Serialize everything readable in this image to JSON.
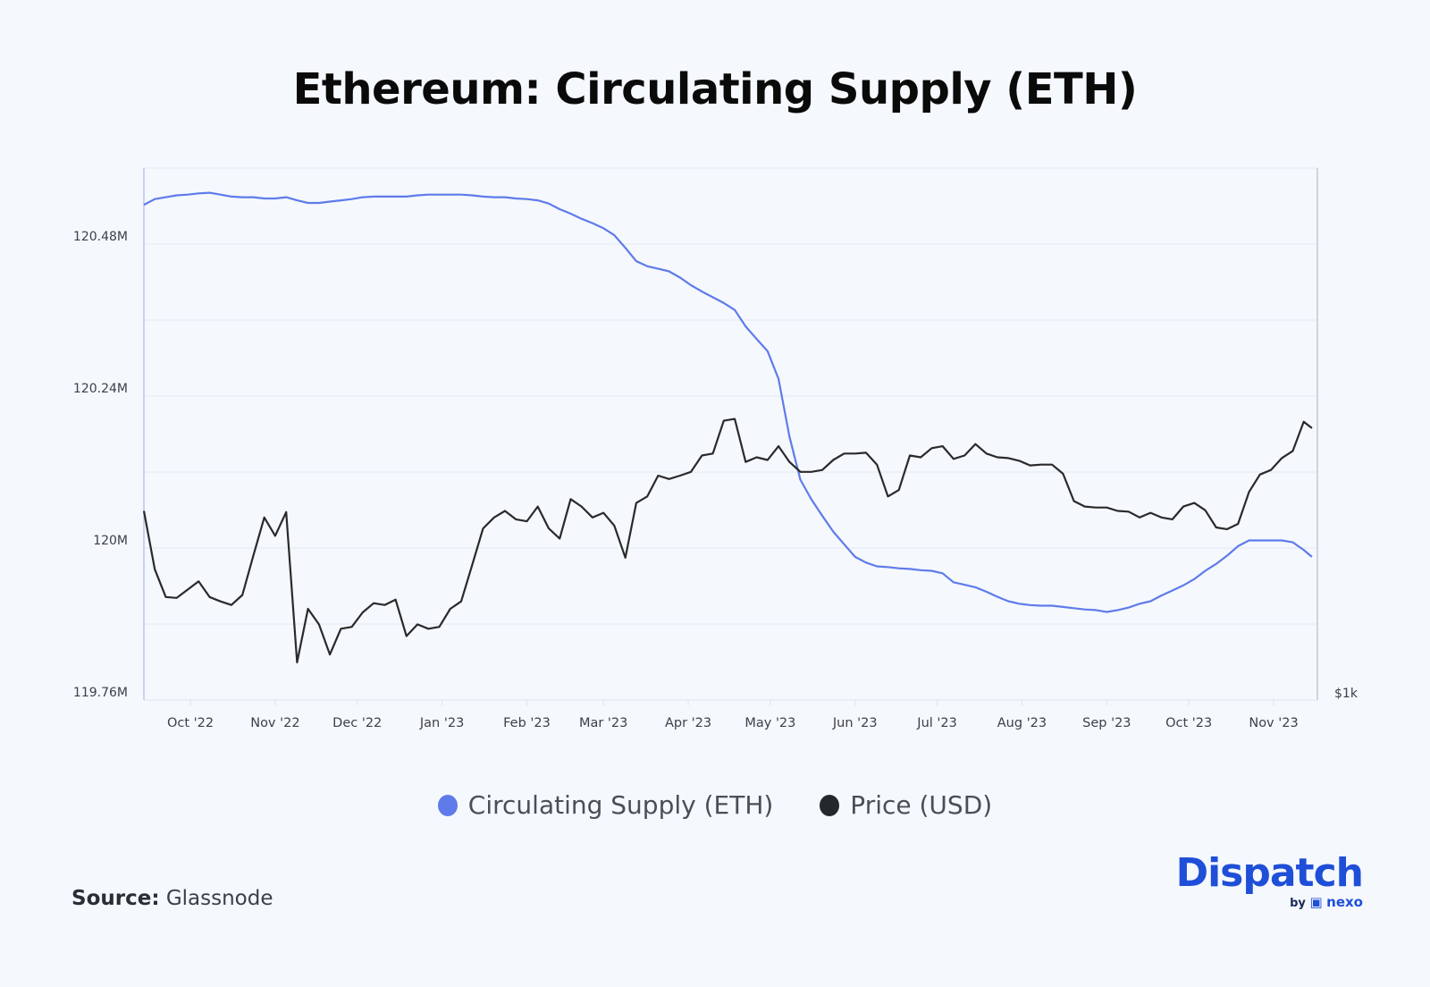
{
  "title": "Ethereum: Circulating Supply (ETH)",
  "source_label": "Source:",
  "source_value": "Glassnode",
  "logo": {
    "text": "Dispatch",
    "sub_by": "by",
    "sub_brand": "nexo"
  },
  "chart_data": {
    "type": "line",
    "title": "Ethereum: Circulating Supply (ETH)",
    "x": [
      "2022-09-14",
      "2022-09-18",
      "2022-09-22",
      "2022-09-26",
      "2022-09-30",
      "2022-10-04",
      "2022-10-08",
      "2022-10-12",
      "2022-10-16",
      "2022-10-20",
      "2022-10-24",
      "2022-10-28",
      "2022-11-01",
      "2022-11-05",
      "2022-11-09",
      "2022-11-13",
      "2022-11-17",
      "2022-11-21",
      "2022-11-25",
      "2022-11-29",
      "2022-12-03",
      "2022-12-07",
      "2022-12-11",
      "2022-12-15",
      "2022-12-19",
      "2022-12-23",
      "2022-12-27",
      "2022-12-31",
      "2023-01-04",
      "2023-01-08",
      "2023-01-12",
      "2023-01-16",
      "2023-01-20",
      "2023-01-24",
      "2023-01-28",
      "2023-02-01",
      "2023-02-05",
      "2023-02-09",
      "2023-02-13",
      "2023-02-17",
      "2023-02-21",
      "2023-02-25",
      "2023-03-01",
      "2023-03-05",
      "2023-03-09",
      "2023-03-13",
      "2023-03-17",
      "2023-03-21",
      "2023-03-25",
      "2023-03-29",
      "2023-04-02",
      "2023-04-06",
      "2023-04-10",
      "2023-04-14",
      "2023-04-18",
      "2023-04-22",
      "2023-04-26",
      "2023-04-30",
      "2023-05-04",
      "2023-05-08",
      "2023-05-12",
      "2023-05-16",
      "2023-05-20",
      "2023-05-24",
      "2023-05-28",
      "2023-06-01",
      "2023-06-05",
      "2023-06-09",
      "2023-06-13",
      "2023-06-17",
      "2023-06-21",
      "2023-06-25",
      "2023-06-29",
      "2023-07-03",
      "2023-07-07",
      "2023-07-11",
      "2023-07-15",
      "2023-07-19",
      "2023-07-23",
      "2023-07-27",
      "2023-07-31",
      "2023-08-04",
      "2023-08-08",
      "2023-08-12",
      "2023-08-16",
      "2023-08-20",
      "2023-08-24",
      "2023-08-28",
      "2023-09-01",
      "2023-09-05",
      "2023-09-09",
      "2023-09-13",
      "2023-09-17",
      "2023-09-21",
      "2023-09-25",
      "2023-09-29",
      "2023-10-03",
      "2023-10-07",
      "2023-10-11",
      "2023-10-15",
      "2023-10-19",
      "2023-10-23",
      "2023-10-27",
      "2023-10-31",
      "2023-11-04",
      "2023-11-08",
      "2023-11-12",
      "2023-11-15"
    ],
    "series": [
      {
        "name": "Circulating Supply (ETH)",
        "color": "#5f7bea",
        "axis": "left",
        "values": [
          120.542,
          120.551,
          120.554,
          120.557,
          120.558,
          120.56,
          120.561,
          120.558,
          120.555,
          120.554,
          120.554,
          120.552,
          120.552,
          120.554,
          120.549,
          120.545,
          120.545,
          120.547,
          120.549,
          120.551,
          120.554,
          120.555,
          120.555,
          120.555,
          120.555,
          120.557,
          120.558,
          120.558,
          120.558,
          120.558,
          120.557,
          120.555,
          120.554,
          120.554,
          120.552,
          120.551,
          120.549,
          120.544,
          120.535,
          120.528,
          120.52,
          120.513,
          120.505,
          120.494,
          120.474,
          120.453,
          120.445,
          120.441,
          120.437,
          120.427,
          120.415,
          120.405,
          120.396,
          120.387,
          120.376,
          120.35,
          120.33,
          120.311,
          120.267,
          120.176,
          120.108,
          120.077,
          120.051,
          120.026,
          120.006,
          119.986,
          119.977,
          119.971,
          119.97,
          119.968,
          119.967,
          119.965,
          119.964,
          119.96,
          119.946,
          119.942,
          119.938,
          119.931,
          119.923,
          119.916,
          119.912,
          119.91,
          119.909,
          119.909,
          119.907,
          119.905,
          119.903,
          119.902,
          119.899,
          119.902,
          119.906,
          119.912,
          119.916,
          119.925,
          119.933,
          119.941,
          119.951,
          119.964,
          119.975,
          119.988,
          120.003,
          120.012,
          120.012,
          120.012,
          120.012,
          120.009,
          119.997,
          119.986
        ]
      },
      {
        "name": "Price (USD)",
        "color": "#2a2a2a",
        "axis": "right",
        "values": [
          1644,
          1410,
          1311,
          1308,
          1337,
          1366,
          1311,
          1296,
          1284,
          1318,
          1461,
          1616,
          1540,
          1639,
          1104,
          1271,
          1220,
          1127,
          1206,
          1212,
          1259,
          1290,
          1284,
          1302,
          1183,
          1220,
          1206,
          1212,
          1271,
          1296,
          1426,
          1570,
          1616,
          1644,
          1608,
          1600,
          1663,
          1570,
          1529,
          1696,
          1663,
          1616,
          1636,
          1581,
          1454,
          1679,
          1708,
          1804,
          1788,
          1804,
          1822,
          1902,
          1912,
          2084,
          2094,
          1870,
          1893,
          1880,
          1949,
          1870,
          1822,
          1822,
          1831,
          1880,
          1912,
          1912,
          1916,
          1857,
          1708,
          1737,
          1902,
          1893,
          1939,
          1949,
          1885,
          1902,
          1960,
          1912,
          1893,
          1889,
          1876,
          1853,
          1857,
          1857,
          1813,
          1687,
          1663,
          1659,
          1659,
          1644,
          1641,
          1616,
          1636,
          1616,
          1608,
          1663,
          1679,
          1647,
          1574,
          1567,
          1589,
          1728,
          1809,
          1831,
          1889,
          1925,
          2079,
          2044
        ]
      }
    ],
    "x_range": [
      "2022-09-14",
      "2023-11-17"
    ],
    "x_tick_labels": [
      {
        "date": "2022-10-01",
        "label": "Oct '22"
      },
      {
        "date": "2022-11-01",
        "label": "Nov '22"
      },
      {
        "date": "2022-12-01",
        "label": "Dec '22"
      },
      {
        "date": "2023-01-01",
        "label": "Jan '23"
      },
      {
        "date": "2023-02-01",
        "label": "Feb '23"
      },
      {
        "date": "2023-03-01",
        "label": "Mar '23"
      },
      {
        "date": "2023-04-01",
        "label": "Apr '23"
      },
      {
        "date": "2023-05-01",
        "label": "May '23"
      },
      {
        "date": "2023-06-01",
        "label": "Jun '23"
      },
      {
        "date": "2023-07-01",
        "label": "Jul '23"
      },
      {
        "date": "2023-08-01",
        "label": "Aug '23"
      },
      {
        "date": "2023-09-01",
        "label": "Sep '23"
      },
      {
        "date": "2023-10-01",
        "label": "Oct '23"
      },
      {
        "date": "2023-11-01",
        "label": "Nov '23"
      }
    ],
    "y_left": {
      "range": [
        119.76,
        120.6
      ],
      "gridlines": [
        119.88,
        120.0,
        120.12,
        120.24,
        120.36,
        120.48,
        120.6
      ],
      "tick_labels": [
        {
          "value": 120.48,
          "label": "120.48M"
        },
        {
          "value": 120.24,
          "label": "120.24M"
        },
        {
          "value": 120.0,
          "label": "120M"
        },
        {
          "value": 119.76,
          "label": "119.76M"
        }
      ]
    },
    "y_right": {
      "scale": "log",
      "range": [
        1000,
        4050
      ],
      "tick_labels": [
        {
          "value": 1000,
          "label": "$1k"
        }
      ]
    },
    "grid": true,
    "legend": {
      "placement": "bottom",
      "items": [
        {
          "label": "Circulating Supply (ETH)",
          "color": "#5f7bea"
        },
        {
          "label": "Price (USD)",
          "color": "#24272b"
        }
      ]
    }
  }
}
